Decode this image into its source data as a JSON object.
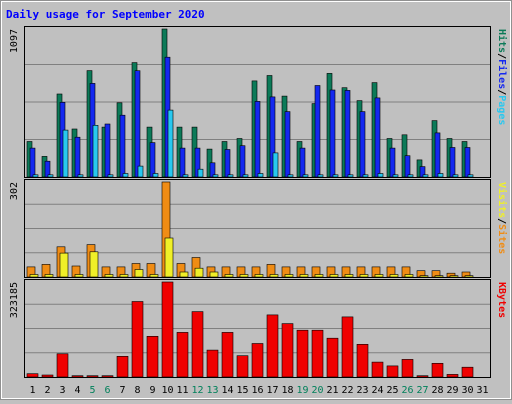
{
  "chart_data": [
    {
      "type": "bar",
      "title": "Daily usage for September 2020",
      "panel": "hits",
      "ymax_label": "1097",
      "categories": [
        "1",
        "2",
        "3",
        "4",
        "5",
        "6",
        "7",
        "8",
        "9",
        "10",
        "11",
        "12",
        "13",
        "14",
        "15",
        "16",
        "17",
        "18",
        "19",
        "20",
        "21",
        "22",
        "23",
        "24",
        "25",
        "26",
        "27",
        "28",
        "29",
        "30",
        "31"
      ],
      "series": [
        {
          "name": "Hits",
          "color": "#0c7a58",
          "values": [
            263,
            153,
            615,
            356,
            789,
            370,
            550,
            848,
            370,
            1097,
            370,
            370,
            207,
            263,
            285,
            712,
            752,
            600,
            263,
            544,
            768,
            662,
            566,
            700,
            285,
            313,
            127,
            418,
            285,
            263,
            0
          ]
        },
        {
          "name": "Files",
          "color": "#1428f0",
          "values": [
            214,
            117,
            554,
            295,
            694,
            393,
            458,
            788,
            255,
            888,
            214,
            214,
            105,
            204,
            232,
            560,
            594,
            485,
            214,
            678,
            645,
            642,
            485,
            586,
            214,
            158,
            77,
            327,
            219,
            219,
            0
          ]
        },
        {
          "name": "Pages",
          "color": "#28c8f0",
          "values": [
            16,
            16,
            348,
            16,
            383,
            16,
            26,
            81,
            26,
            496,
            16,
            58,
            16,
            16,
            16,
            26,
            179,
            16,
            16,
            16,
            16,
            16,
            16,
            26,
            16,
            16,
            16,
            26,
            16,
            16,
            0
          ]
        }
      ],
      "right_labels": [
        "Pages",
        "Files",
        "Hits"
      ],
      "right_label_colors": [
        "#28c8f0",
        "#1428f0",
        "#0c7a58"
      ]
    },
    {
      "type": "bar",
      "panel": "visits",
      "ymax_label": "302",
      "categories": [
        "1",
        "2",
        "3",
        "4",
        "5",
        "6",
        "7",
        "8",
        "9",
        "10",
        "11",
        "12",
        "13",
        "14",
        "15",
        "16",
        "17",
        "18",
        "19",
        "20",
        "21",
        "22",
        "23",
        "24",
        "25",
        "26",
        "27",
        "28",
        "29",
        "30",
        "31"
      ],
      "series": [
        {
          "name": "Sites",
          "color": "#f08c14",
          "values": [
            32,
            40,
            96,
            35,
            103,
            32,
            32,
            43,
            43,
            302,
            43,
            62,
            32,
            32,
            32,
            32,
            40,
            32,
            32,
            32,
            32,
            32,
            32,
            32,
            32,
            32,
            20,
            20,
            12,
            16,
            0
          ]
        },
        {
          "name": "Visits",
          "color": "#f0f028",
          "values": [
            8,
            8,
            76,
            8,
            80,
            8,
            8,
            24,
            8,
            124,
            16,
            28,
            16,
            8,
            8,
            8,
            8,
            8,
            8,
            8,
            8,
            8,
            8,
            8,
            8,
            8,
            4,
            4,
            4,
            4,
            0
          ]
        }
      ],
      "right_labels": [
        "Sites",
        "Visits"
      ],
      "right_label_colors": [
        "#f08c14",
        "#f0f028"
      ]
    },
    {
      "type": "bar",
      "panel": "kbytes",
      "ymax_label": "323185",
      "categories": [
        "1",
        "2",
        "3",
        "4",
        "5",
        "6",
        "7",
        "8",
        "9",
        "10",
        "11",
        "12",
        "13",
        "14",
        "15",
        "16",
        "17",
        "18",
        "19",
        "20",
        "21",
        "22",
        "23",
        "24",
        "25",
        "26",
        "27",
        "28",
        "29",
        "30",
        "31"
      ],
      "series": [
        {
          "name": "KBytes",
          "color": "#f00000",
          "values": [
            5540,
            3320,
            39510,
            2220,
            2220,
            2220,
            35100,
            128280,
            69100,
            161440,
            75750,
            111100,
            45700,
            75750,
            36200,
            57000,
            105500,
            90700,
            79600,
            79600,
            65900,
            102100,
            55500,
            25300,
            18800,
            29900,
            2220,
            23200,
            4430,
            16600,
            0
          ]
        }
      ],
      "right_labels": [
        "KBytes"
      ],
      "right_label_colors": [
        "#f00000"
      ]
    }
  ],
  "weekend_days": [
    5,
    6,
    12,
    13,
    19,
    20,
    26,
    27
  ],
  "colors": {
    "background": "#c0c0c0",
    "title": "#0000ff",
    "axis_text": "#000000",
    "weekend_text": "#00805a",
    "grid": "#808080"
  }
}
